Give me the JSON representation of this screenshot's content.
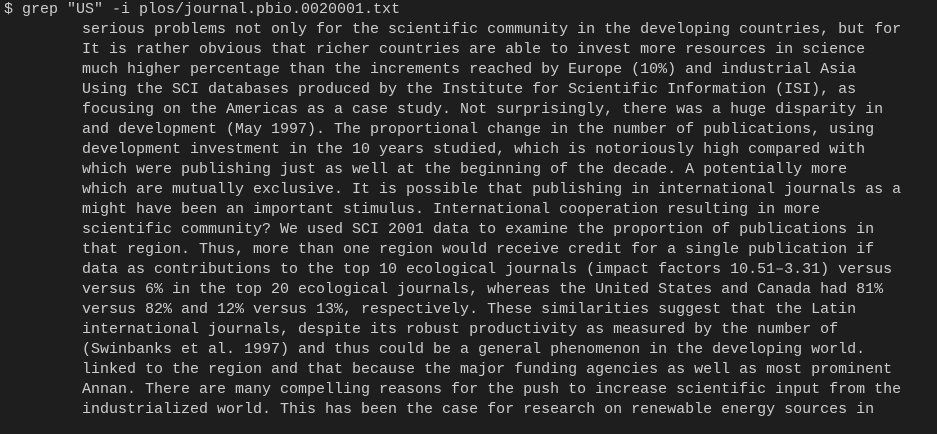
{
  "terminal": {
    "command_line": "$ grep \"US\" -i plos/journal.pbio.0020001.txt",
    "output_lines": [
      "serious problems not only for the scientific community in the developing countries, but for",
      "It is rather obvious that richer countries are able to invest more resources in science",
      "much higher percentage than the increments reached by Europe (10%) and industrial Asia",
      "Using the SCI databases produced by the Institute for Scientific Information (ISI), as",
      "focusing on the Americas as a case study. Not surprisingly, there was a huge disparity in",
      "and development (May 1997). The proportional change in the number of publications, using",
      "development investment in the 10 years studied, which is notoriously high compared with",
      "which were publishing just as well at the beginning of the decade. A potentially more",
      "which are mutually exclusive. It is possible that publishing in international journals as a",
      "might have been an important stimulus. International cooperation resulting in more",
      "scientific community? We used SCI 2001 data to examine the proportion of publications in",
      "that region. Thus, more than one region would receive credit for a single publication if",
      "data as contributions to the top 10 ecological journals (impact factors 10.51–3.31) versus",
      "versus 6% in the top 20 ecological journals, whereas the United States and Canada had 81%",
      "versus 82% and 12% versus 13%, respectively. These similarities suggest that the Latin",
      "international journals, despite its robust productivity as measured by the number of",
      "(Swinbanks et al. 1997) and thus could be a general phenomenon in the developing world.",
      "linked to the region and that because the major funding agencies as well as most prominent",
      "Annan. There are many compelling reasons for the push to increase scientific input from the",
      "industrialized world. This has been the case for research on renewable energy sources in"
    ]
  }
}
